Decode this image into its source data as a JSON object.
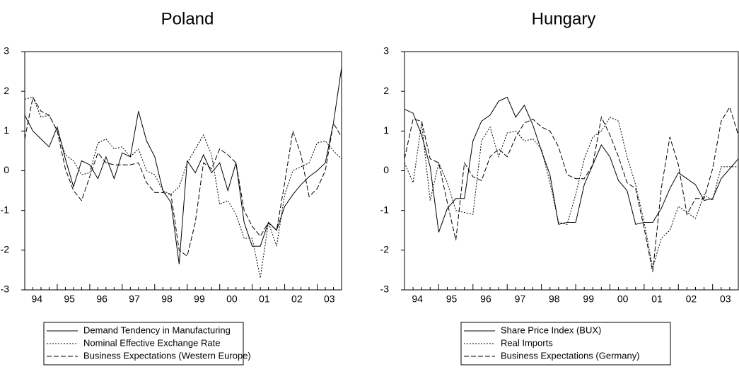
{
  "chart_data": [
    {
      "type": "line",
      "title": "Poland",
      "categories": [
        "94",
        null,
        null,
        null,
        "95",
        null,
        null,
        null,
        "96",
        null,
        null,
        null,
        "97",
        null,
        null,
        null,
        "98",
        null,
        null,
        null,
        "99",
        null,
        null,
        null,
        "00",
        null,
        null,
        null,
        "01",
        null,
        null,
        null,
        "02",
        null,
        null,
        null,
        "03",
        null,
        null,
        null
      ],
      "ylim": [
        -3,
        3
      ],
      "yticks": [
        -3,
        -2,
        -1,
        0,
        1,
        2,
        3
      ],
      "grid": false,
      "series": [
        {
          "name": "Demand Tendency in Manufacturing",
          "color": "#000000",
          "dash": "solid",
          "values": [
            1.4,
            1.0,
            0.8,
            0.6,
            1.1,
            0.3,
            -0.4,
            0.25,
            0.15,
            -0.2,
            0.35,
            -0.2,
            0.45,
            0.35,
            1.5,
            0.75,
            0.35,
            -0.5,
            -0.8,
            -2.35,
            0.25,
            -0.05,
            0.4,
            -0.05,
            0.2,
            -0.5,
            0.2,
            -1.3,
            -1.9,
            -1.9,
            -1.3,
            -1.5,
            -0.9,
            -0.6,
            -0.35,
            -0.15,
            0.0,
            0.2,
            1.2,
            2.6
          ]
        },
        {
          "name": "Nominal Effective Exchange Rate",
          "color": "#000000",
          "dash": "dotted",
          "values": [
            1.8,
            1.85,
            1.35,
            1.4,
            1.0,
            0.4,
            0.25,
            -0.1,
            -0.05,
            0.7,
            0.8,
            0.55,
            0.6,
            0.35,
            0.55,
            0.0,
            -0.1,
            -0.5,
            -0.6,
            -0.4,
            0.2,
            0.55,
            0.9,
            0.4,
            -0.85,
            -0.75,
            -1.1,
            -1.7,
            -1.7,
            -2.7,
            -1.3,
            -1.9,
            -0.6,
            0.0,
            0.1,
            0.2,
            0.7,
            0.75,
            0.5,
            0.3
          ]
        },
        {
          "name": "Business Expectations (Western Europe)",
          "color": "#000000",
          "dash": "dashed",
          "values": [
            0.8,
            1.85,
            1.5,
            1.4,
            1.0,
            0.05,
            -0.5,
            -0.75,
            -0.15,
            0.45,
            0.2,
            0.15,
            0.15,
            0.15,
            0.2,
            -0.3,
            -0.55,
            -0.55,
            -0.6,
            -2.0,
            -2.15,
            -1.3,
            0.2,
            0.05,
            0.55,
            0.4,
            0.2,
            -1.0,
            -1.4,
            -1.65,
            -1.3,
            -1.5,
            -0.3,
            1.0,
            0.4,
            -0.65,
            -0.45,
            0.0,
            1.2,
            0.85
          ]
        }
      ]
    },
    {
      "type": "line",
      "title": "Hungary",
      "categories": [
        "94",
        null,
        null,
        null,
        "95",
        null,
        null,
        null,
        "96",
        null,
        null,
        null,
        "97",
        null,
        null,
        null,
        "98",
        null,
        null,
        null,
        "99",
        null,
        null,
        null,
        "00",
        null,
        null,
        null,
        "01",
        null,
        null,
        null,
        "02",
        null,
        null,
        null,
        "03",
        null,
        null,
        null
      ],
      "ylim": [
        -3,
        3
      ],
      "yticks": [
        -3,
        -2,
        -1,
        0,
        1,
        2,
        3
      ],
      "grid": false,
      "series": [
        {
          "name": "Share Price Index (BUX)",
          "color": "#000000",
          "dash": "solid",
          "values": [
            1.55,
            1.45,
            0.9,
            0.1,
            -1.55,
            -0.95,
            -0.7,
            -0.7,
            0.75,
            1.25,
            1.4,
            1.75,
            1.85,
            1.35,
            1.65,
            1.15,
            0.5,
            -0.1,
            -1.35,
            -1.3,
            -1.3,
            -0.35,
            0.15,
            0.65,
            0.35,
            -0.25,
            -0.5,
            -1.35,
            -1.3,
            -1.3,
            -0.95,
            -0.45,
            -0.05,
            -0.2,
            -0.35,
            -0.75,
            -0.7,
            -0.2,
            0.05,
            0.3
          ]
        },
        {
          "name": "Real Imports",
          "color": "#000000",
          "dash": "dotted",
          "values": [
            0.2,
            -0.3,
            1.2,
            -0.75,
            0.2,
            -0.3,
            -1.0,
            -1.05,
            -1.1,
            0.75,
            1.1,
            0.35,
            0.95,
            1.0,
            0.75,
            0.8,
            0.55,
            -0.3,
            -1.3,
            -1.35,
            -0.6,
            0.3,
            0.85,
            1.0,
            1.35,
            1.25,
            0.35,
            -0.35,
            -1.3,
            -2.45,
            -1.7,
            -1.5,
            -0.9,
            -1.05,
            -1.2,
            -0.6,
            -0.75,
            0.1,
            0.1,
            0.1
          ]
        },
        {
          "name": "Business Expectations (Germany)",
          "color": "#000000",
          "dash": "dashed",
          "values": [
            0.3,
            1.3,
            1.25,
            0.3,
            0.2,
            -0.8,
            -1.75,
            0.2,
            -0.15,
            -0.25,
            0.35,
            0.55,
            0.35,
            0.85,
            1.2,
            1.3,
            1.1,
            1.0,
            0.6,
            -0.1,
            -0.2,
            -0.2,
            0.15,
            1.35,
            0.9,
            0.35,
            -0.3,
            -0.45,
            -1.45,
            -2.55,
            -0.45,
            0.85,
            0.15,
            -1.1,
            -0.7,
            -0.7,
            0.05,
            1.25,
            1.6,
            0.9
          ]
        }
      ]
    }
  ]
}
